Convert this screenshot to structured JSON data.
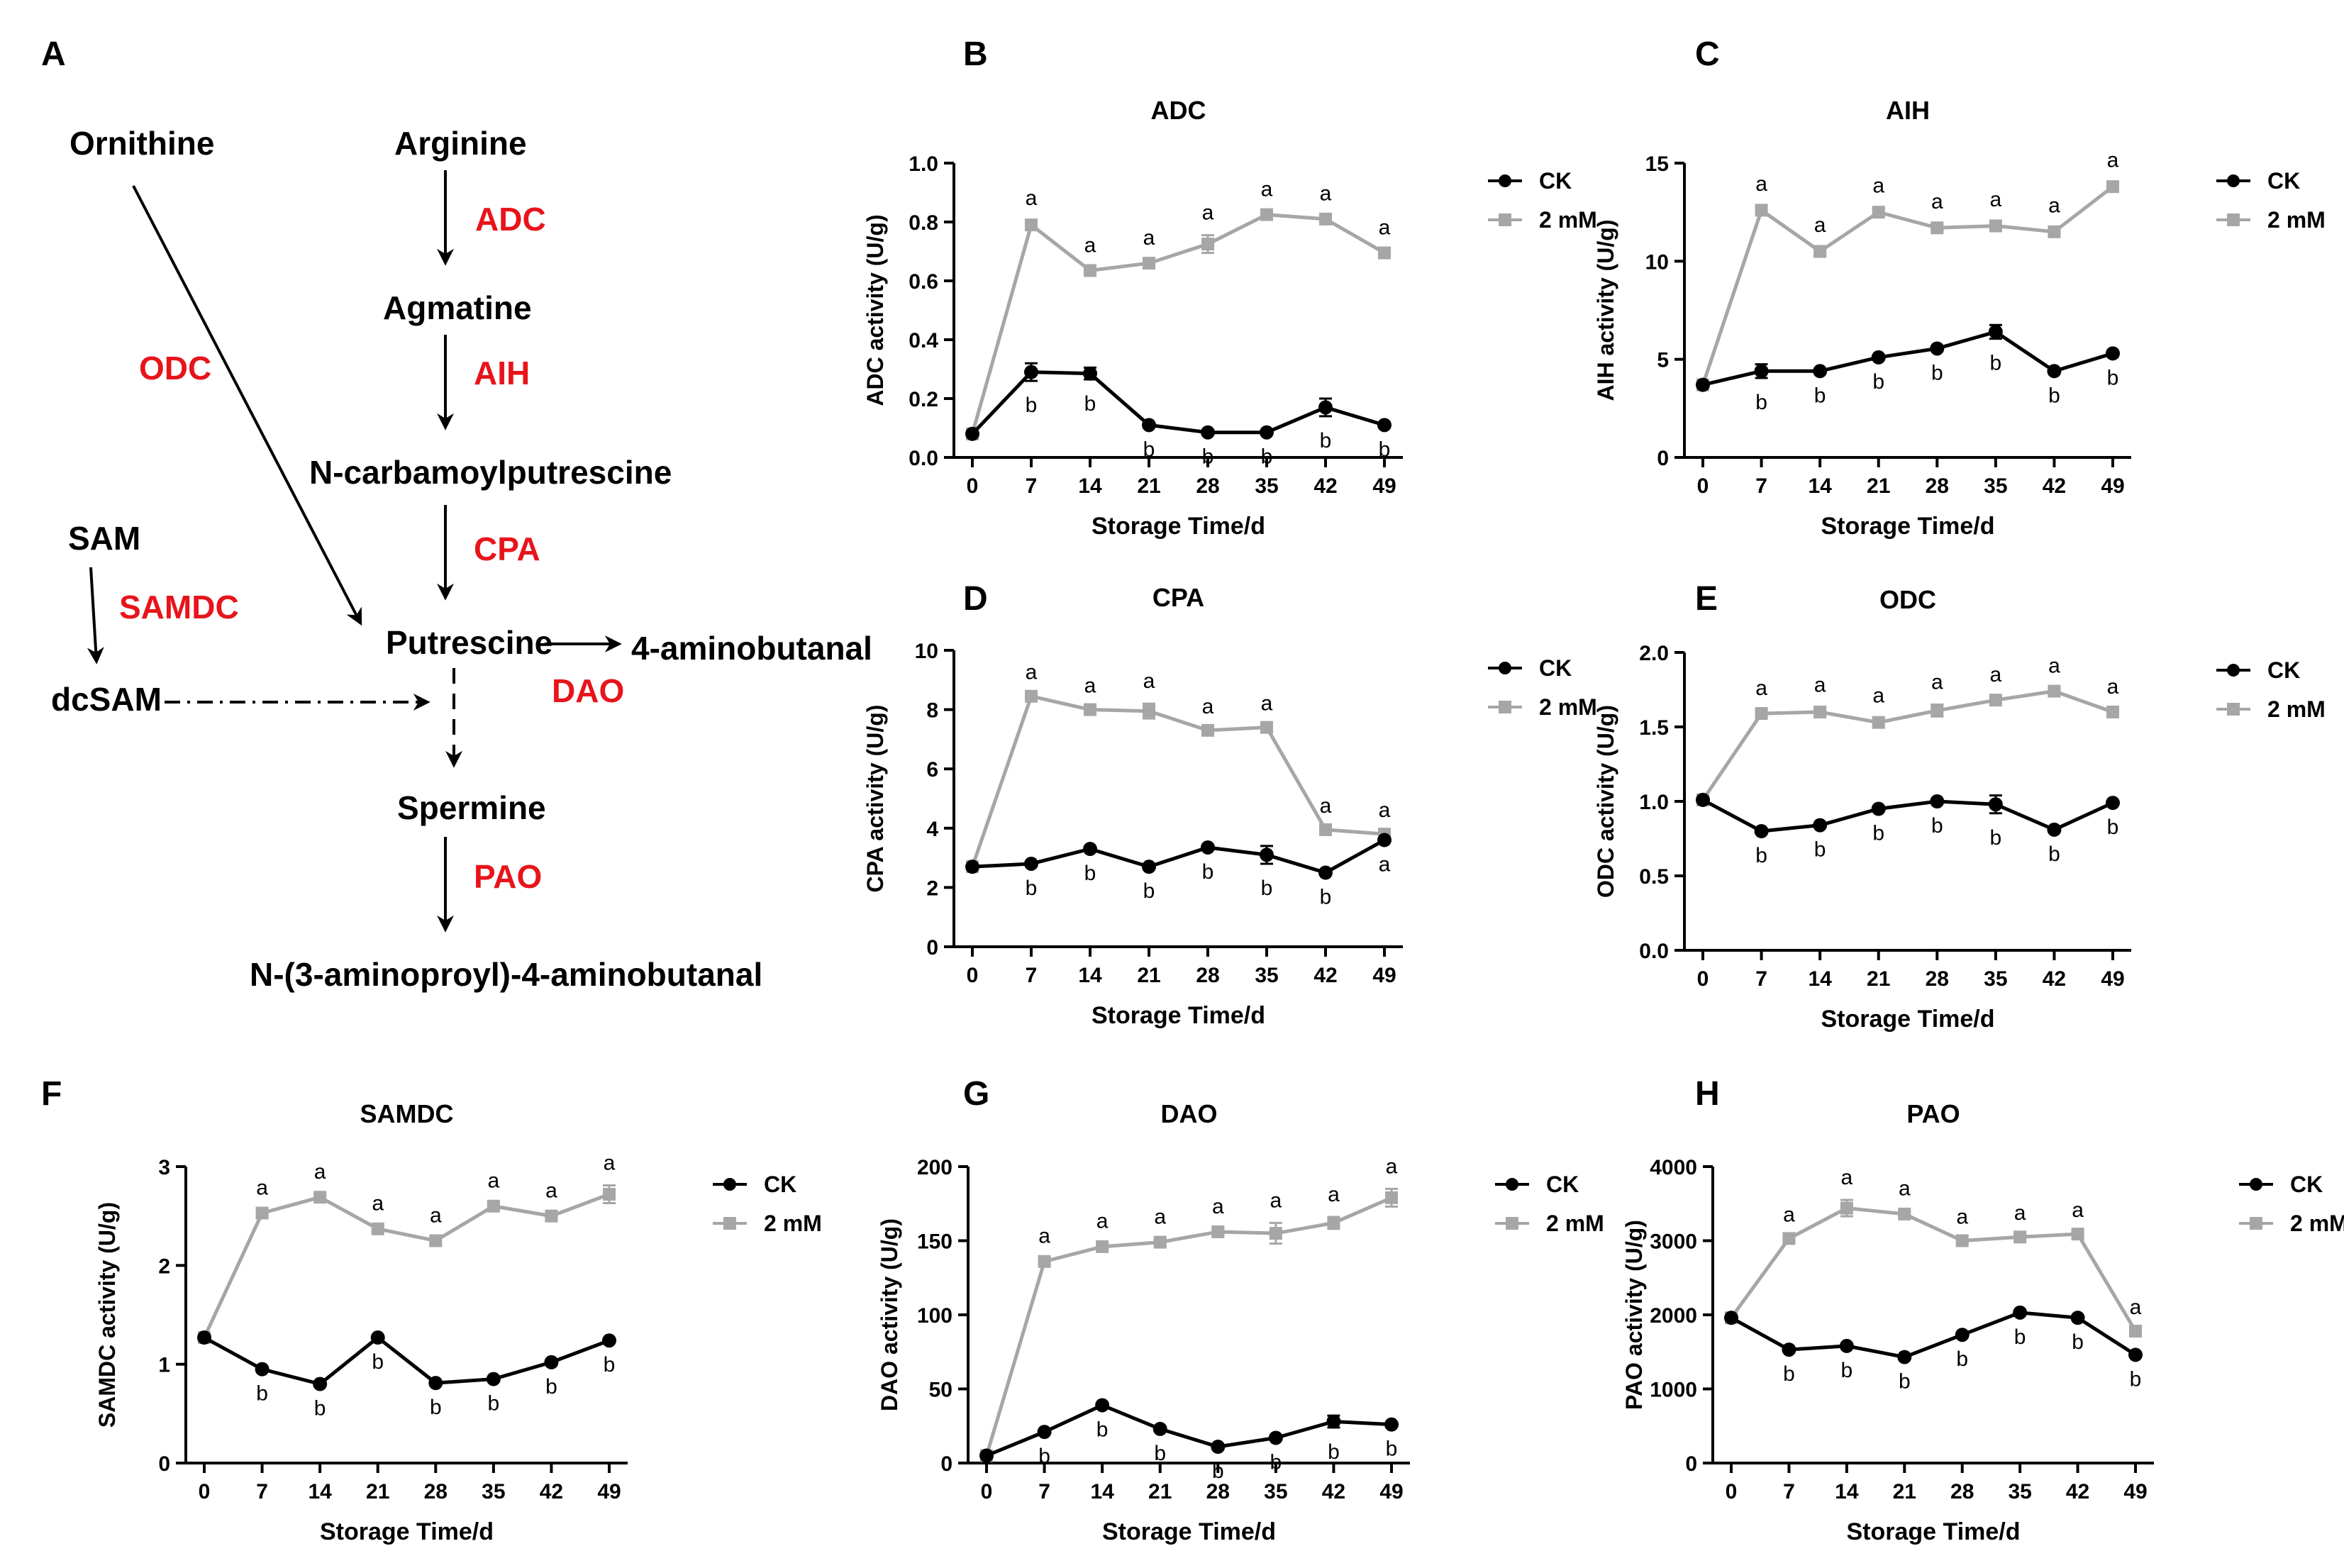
{
  "colors": {
    "ck": "#000000",
    "treatment": "#a6a6a6",
    "enzyme": "#e8141b",
    "text": "#000000"
  },
  "pathway": {
    "panel_label": "A",
    "metabolites": {
      "ornithine": "Ornithine",
      "arginine": "Arginine",
      "agmatine": "Agmatine",
      "ncarbamoyl": "N-carbamoylputrescine",
      "sam": "SAM",
      "dcsam": "dcSAM",
      "putrescine": "Putrescine",
      "aminobutanal": "4-aminobutanal",
      "spermine": "Spermine",
      "product": "N-(3-aminoproyl)-4-aminobutanal"
    },
    "enzymes": {
      "adc": "ADC",
      "aih": "AIH",
      "odc": "ODC",
      "cpa": "CPA",
      "samdc": "SAMDC",
      "dao": "DAO",
      "pao": "PAO"
    }
  },
  "chart_data": [
    {
      "panel": "B",
      "type": "line",
      "title": "ADC",
      "xlabel": "Storage Time/d",
      "ylabel": "ADC activity (U/g)",
      "x": [
        0,
        7,
        14,
        21,
        28,
        35,
        42,
        49
      ],
      "ylim": [
        0,
        1.0
      ],
      "yticks": [
        "0.0",
        "0.2",
        "0.4",
        "0.6",
        "0.8",
        "1.0"
      ],
      "ytick_values": [
        0,
        0.2,
        0.4,
        0.6,
        0.8,
        1.0
      ],
      "legend": [
        "CK",
        "2 mM"
      ],
      "series": [
        {
          "name": "CK",
          "values": [
            0.08,
            0.29,
            0.285,
            0.11,
            0.085,
            0.085,
            0.17,
            0.11
          ],
          "errors": [
            0,
            0.03,
            0.02,
            0,
            0,
            0,
            0.03,
            0
          ],
          "labels": [
            "",
            "b",
            "b",
            "b",
            "b",
            "b",
            "b",
            "b"
          ]
        },
        {
          "name": "2 mM",
          "values": [
            0.08,
            0.79,
            0.635,
            0.66,
            0.725,
            0.825,
            0.81,
            0.695
          ],
          "errors": [
            0,
            0.015,
            0.01,
            0.01,
            0.03,
            0.01,
            0.01,
            0.01
          ],
          "labels": [
            "",
            "a",
            "a",
            "a",
            "a",
            "a",
            "a",
            "a"
          ]
        }
      ]
    },
    {
      "panel": "C",
      "type": "line",
      "title": "AIH",
      "xlabel": "Storage Time/d",
      "ylabel": "AIH activity (U/g)",
      "x": [
        0,
        7,
        14,
        21,
        28,
        35,
        42,
        49
      ],
      "ylim": [
        0,
        15
      ],
      "yticks": [
        "0",
        "5",
        "10",
        "15"
      ],
      "ytick_values": [
        0,
        5,
        10,
        15
      ],
      "legend": [
        "CK",
        "2 mM"
      ],
      "series": [
        {
          "name": "CK",
          "values": [
            3.7,
            4.4,
            4.4,
            5.1,
            5.55,
            6.4,
            4.4,
            5.3
          ],
          "errors": [
            0,
            0.35,
            0,
            0,
            0,
            0.35,
            0,
            0
          ],
          "labels": [
            "",
            "b",
            "b",
            "b",
            "b",
            "b",
            "b",
            "b"
          ]
        },
        {
          "name": "2 mM",
          "values": [
            3.7,
            12.6,
            10.5,
            12.5,
            11.7,
            11.8,
            11.5,
            13.8
          ],
          "errors": [
            0,
            0.2,
            0.2,
            0.2,
            0.2,
            0.2,
            0.2,
            0.2
          ],
          "labels": [
            "",
            "a",
            "a",
            "a",
            "a",
            "a",
            "a",
            "a"
          ]
        }
      ]
    },
    {
      "panel": "D",
      "type": "line",
      "title": "CPA",
      "xlabel": "Storage Time/d",
      "ylabel": "CPA activity (U/g)",
      "x": [
        0,
        7,
        14,
        21,
        28,
        35,
        42,
        49
      ],
      "ylim": [
        0,
        10
      ],
      "yticks": [
        "0",
        "2",
        "4",
        "6",
        "8",
        "10"
      ],
      "ytick_values": [
        0,
        2,
        4,
        6,
        8,
        10
      ],
      "legend": [
        "CK",
        "2 mM"
      ],
      "series": [
        {
          "name": "CK",
          "values": [
            2.7,
            2.8,
            3.3,
            2.7,
            3.35,
            3.1,
            2.5,
            3.6
          ],
          "errors": [
            0,
            0,
            0,
            0,
            0,
            0.3,
            0,
            0
          ],
          "labels": [
            "",
            "b",
            "b",
            "b",
            "b",
            "b",
            "b",
            "a"
          ]
        },
        {
          "name": "2 mM",
          "values": [
            2.7,
            8.45,
            8.0,
            7.95,
            7.3,
            7.4,
            3.95,
            3.8
          ],
          "errors": [
            0,
            0.05,
            0.05,
            0.25,
            0.05,
            0.05,
            0.05,
            0.05
          ],
          "labels": [
            "",
            "a",
            "a",
            "a",
            "a",
            "a",
            "a",
            "a"
          ]
        }
      ]
    },
    {
      "panel": "E",
      "type": "line",
      "title": "ODC",
      "xlabel": "Storage Time/d",
      "ylabel": "ODC activity (U/g)",
      "x": [
        0,
        7,
        14,
        21,
        28,
        35,
        42,
        49
      ],
      "ylim": [
        0,
        2.0
      ],
      "yticks": [
        "0.0",
        "0.5",
        "1.0",
        "1.5",
        "2.0"
      ],
      "ytick_values": [
        0,
        0.5,
        1.0,
        1.5,
        2.0
      ],
      "legend": [
        "CK",
        "2 mM"
      ],
      "series": [
        {
          "name": "CK",
          "values": [
            1.01,
            0.8,
            0.84,
            0.95,
            1.0,
            0.98,
            0.81,
            0.99
          ],
          "errors": [
            0,
            0,
            0,
            0,
            0,
            0.06,
            0,
            0
          ],
          "labels": [
            "",
            "b",
            "b",
            "b",
            "b",
            "b",
            "b",
            "b"
          ]
        },
        {
          "name": "2 mM",
          "values": [
            1.01,
            1.59,
            1.6,
            1.53,
            1.61,
            1.68,
            1.74,
            1.6
          ],
          "errors": [
            0,
            0.02,
            0.03,
            0.03,
            0.04,
            0.02,
            0.02,
            0.02
          ],
          "labels": [
            "",
            "a",
            "a",
            "a",
            "a",
            "a",
            "a",
            "a"
          ]
        }
      ]
    },
    {
      "panel": "F",
      "type": "line",
      "title": "SAMDC",
      "xlabel": "Storage Time/d",
      "ylabel": "SAMDC activity (U/g)",
      "x": [
        0,
        7,
        14,
        21,
        28,
        35,
        42,
        49
      ],
      "ylim": [
        0,
        3
      ],
      "yticks": [
        "0",
        "1",
        "2",
        "3"
      ],
      "ytick_values": [
        0,
        1,
        2,
        3
      ],
      "legend": [
        "CK",
        "2 mM"
      ],
      "series": [
        {
          "name": "CK",
          "values": [
            1.27,
            0.95,
            0.8,
            1.27,
            0.81,
            0.85,
            1.02,
            1.24
          ],
          "errors": [
            0,
            0,
            0,
            0,
            0,
            0,
            0,
            0
          ],
          "labels": [
            "",
            "b",
            "b",
            "b",
            "b",
            "b",
            "b",
            "b"
          ]
        },
        {
          "name": "2 mM",
          "values": [
            1.27,
            2.53,
            2.69,
            2.37,
            2.25,
            2.6,
            2.5,
            2.72
          ],
          "errors": [
            0,
            0.03,
            0.03,
            0.03,
            0.03,
            0.03,
            0.03,
            0.09
          ],
          "labels": [
            "",
            "a",
            "a",
            "a",
            "a",
            "a",
            "a",
            "a"
          ]
        }
      ]
    },
    {
      "panel": "G",
      "type": "line",
      "title": "DAO",
      "xlabel": "Storage Time/d",
      "ylabel": "DAO activity (U/g)",
      "x": [
        0,
        7,
        14,
        21,
        28,
        35,
        42,
        49
      ],
      "ylim": [
        0,
        200
      ],
      "yticks": [
        "0",
        "50",
        "100",
        "150",
        "200"
      ],
      "ytick_values": [
        0,
        50,
        100,
        150,
        200
      ],
      "legend": [
        "CK",
        "2 mM"
      ],
      "series": [
        {
          "name": "CK",
          "values": [
            5,
            21,
            39,
            23,
            11,
            17,
            28,
            26
          ],
          "errors": [
            0,
            0,
            0,
            0,
            0,
            0,
            4,
            0
          ],
          "labels": [
            "",
            "b",
            "b",
            "b",
            "b",
            "b",
            "b",
            "b"
          ]
        },
        {
          "name": "2 mM",
          "values": [
            5,
            136,
            146,
            149,
            156,
            155,
            162,
            179
          ],
          "errors": [
            0,
            2,
            2,
            2,
            2,
            7,
            4,
            6
          ],
          "labels": [
            "",
            "a",
            "a",
            "a",
            "a",
            "a",
            "a",
            "a"
          ]
        }
      ]
    },
    {
      "panel": "H",
      "type": "line",
      "title": "PAO",
      "xlabel": "Storage Time/d",
      "ylabel": "PAO activity (U/g)",
      "x": [
        0,
        7,
        14,
        21,
        28,
        35,
        42,
        49
      ],
      "ylim": [
        0,
        4000
      ],
      "yticks": [
        "0",
        "1000",
        "2000",
        "3000",
        "4000"
      ],
      "ytick_values": [
        0,
        1000,
        2000,
        3000,
        4000
      ],
      "legend": [
        "CK",
        "2 mM"
      ],
      "series": [
        {
          "name": "CK",
          "values": [
            1960,
            1530,
            1580,
            1430,
            1730,
            2030,
            1960,
            1460
          ],
          "errors": [
            0,
            0,
            0,
            0,
            0,
            0,
            0,
            0
          ],
          "labels": [
            "",
            "b",
            "b",
            "b",
            "b",
            "b",
            "b",
            "b"
          ]
        },
        {
          "name": "2 mM",
          "values": [
            1960,
            3030,
            3440,
            3360,
            3000,
            3050,
            3090,
            1780
          ],
          "errors": [
            0,
            20,
            110,
            40,
            20,
            20,
            20,
            20
          ],
          "labels": [
            "",
            "a",
            "a",
            "a",
            "a",
            "a",
            "a",
            "a"
          ]
        }
      ]
    }
  ]
}
